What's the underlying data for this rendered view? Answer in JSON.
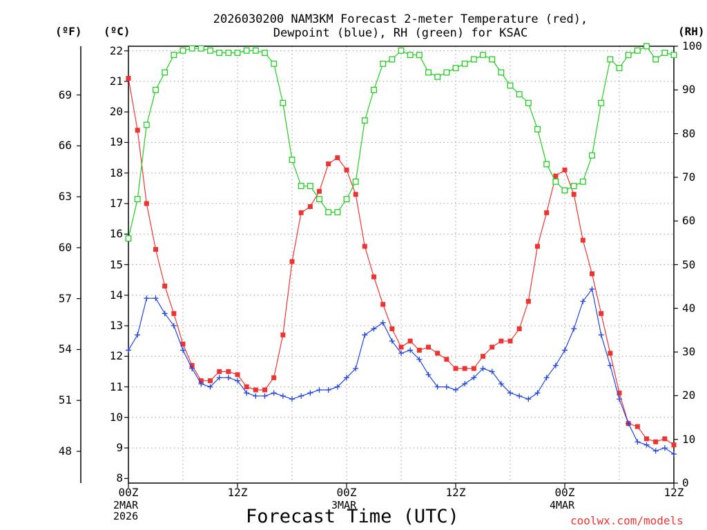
{
  "title_line1": "2026030200 NAM3KM Forecast 2-meter Temperature (red),",
  "title_line2": "Dewpoint (blue), RH (green) for KSAC",
  "unit_f": "(ºF)",
  "unit_c": "(ºC)",
  "unit_rh": "(RH)",
  "xlabel": "Forecast Time (UTC)",
  "credit": "coolwx.com/models",
  "colors": {
    "temperature": "#ee3333",
    "dewpoint": "#2244dd",
    "rh": "#22cc22",
    "grid": "#999999"
  },
  "chart_data": {
    "type": "line",
    "title": "2026030200 NAM3KM Forecast 2-meter Temperature (red), Dewpoint (blue), RH (green) for KSAC",
    "xlabel": "Forecast Time (UTC)",
    "x_unit": "forecast hour from 2026-03-02 00Z",
    "x": [
      0,
      1,
      2,
      3,
      4,
      5,
      6,
      7,
      8,
      9,
      10,
      11,
      12,
      13,
      14,
      15,
      16,
      17,
      18,
      19,
      20,
      21,
      22,
      23,
      24,
      25,
      26,
      27,
      28,
      29,
      30,
      31,
      32,
      33,
      34,
      35,
      36,
      37,
      38,
      39,
      40,
      41,
      42,
      43,
      44,
      45,
      46,
      47,
      48,
      49,
      50,
      51,
      52,
      53,
      54,
      55,
      56,
      57,
      58,
      59,
      60
    ],
    "xlim": [
      0,
      60
    ],
    "x_ticks": [
      {
        "hour": 0,
        "label": "00Z",
        "sub1": "2MAR",
        "sub2": "2026"
      },
      {
        "hour": 12,
        "label": "12Z",
        "sub1": "",
        "sub2": ""
      },
      {
        "hour": 24,
        "label": "00Z",
        "sub1": "3MAR",
        "sub2": ""
      },
      {
        "hour": 36,
        "label": "12Z",
        "sub1": "",
        "sub2": ""
      },
      {
        "hour": 48,
        "label": "00Z",
        "sub1": "4MAR",
        "sub2": ""
      },
      {
        "hour": 60,
        "label": "12Z",
        "sub1": "",
        "sub2": ""
      }
    ],
    "y_left_c": {
      "label": "(ºC)",
      "range": [
        7.85,
        22.15
      ],
      "ticks": [
        8,
        9,
        10,
        11,
        12,
        13,
        14,
        15,
        16,
        17,
        18,
        19,
        20,
        21,
        22
      ]
    },
    "y_left_f": {
      "label": "(ºF)",
      "ticks": [
        48,
        51,
        54,
        57,
        60,
        63,
        66,
        69
      ]
    },
    "y_right_rh": {
      "label": "(RH)",
      "range": [
        0,
        100
      ],
      "ticks": [
        0,
        10,
        20,
        30,
        40,
        50,
        60,
        70,
        80,
        90,
        100
      ]
    },
    "series": [
      {
        "name": "Temperature",
        "unit": "C",
        "axis": "left",
        "color": "#ee3333",
        "marker": "filled-square",
        "values": [
          21.1,
          19.4,
          17.0,
          15.5,
          14.3,
          13.4,
          12.4,
          11.7,
          11.2,
          11.2,
          11.5,
          11.5,
          11.4,
          11.0,
          10.9,
          10.9,
          11.3,
          12.7,
          15.1,
          16.7,
          16.9,
          17.4,
          18.3,
          18.5,
          18.1,
          17.3,
          15.6,
          14.6,
          13.7,
          12.9,
          12.3,
          12.5,
          12.2,
          12.3,
          12.1,
          11.9,
          11.6,
          11.6,
          11.6,
          12.0,
          12.3,
          12.5,
          12.5,
          12.9,
          13.8,
          15.6,
          16.7,
          17.9,
          18.1,
          17.3,
          15.8,
          14.7,
          13.4,
          12.1,
          10.8,
          9.8,
          9.7,
          9.3,
          9.2,
          9.3,
          9.1
        ]
      },
      {
        "name": "Dewpoint",
        "unit": "C",
        "axis": "left",
        "color": "#2244dd",
        "marker": "plus",
        "values": [
          12.2,
          12.7,
          13.9,
          13.9,
          13.4,
          13.0,
          12.2,
          11.6,
          11.1,
          11.0,
          11.3,
          11.3,
          11.2,
          10.8,
          10.7,
          10.7,
          10.8,
          10.7,
          10.6,
          10.7,
          10.8,
          10.9,
          10.9,
          11.0,
          11.3,
          11.6,
          12.7,
          12.9,
          13.1,
          12.5,
          12.1,
          12.2,
          11.9,
          11.4,
          11.0,
          11.0,
          10.9,
          11.1,
          11.3,
          11.6,
          11.5,
          11.1,
          10.8,
          10.7,
          10.6,
          10.8,
          11.3,
          11.7,
          12.2,
          12.9,
          13.8,
          14.2,
          12.7,
          11.7,
          10.6,
          9.8,
          9.2,
          9.1,
          8.9,
          9.0,
          8.8
        ]
      },
      {
        "name": "RH",
        "unit": "%",
        "axis": "right",
        "color": "#22cc22",
        "marker": "open-square",
        "values": [
          56,
          65,
          82,
          90,
          94,
          98,
          99,
          99.5,
          99.5,
          99,
          98.5,
          98.5,
          98.5,
          99,
          99,
          98.5,
          96,
          87,
          74,
          68,
          68,
          65,
          62,
          62,
          65,
          69,
          83,
          90,
          96,
          97,
          99,
          98,
          98,
          94,
          93,
          94,
          95,
          96,
          97,
          98,
          97,
          94,
          91,
          89,
          87,
          81,
          73,
          69,
          67,
          68,
          69,
          75,
          87,
          97,
          95,
          98,
          99,
          100,
          97,
          98.5,
          98
        ]
      }
    ]
  }
}
